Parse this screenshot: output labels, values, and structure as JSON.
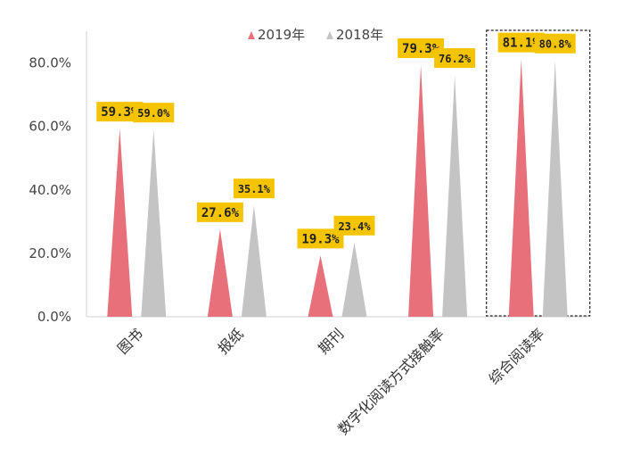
{
  "chart_data": {
    "type": "bar",
    "bar_shape": "triangle",
    "title": "",
    "xlabel": "",
    "ylabel": "",
    "categories": [
      "图书",
      "报纸",
      "期刊",
      "数字化阅读方式接触率",
      "综合阅读率"
    ],
    "series": [
      {
        "name": "2019年",
        "color": "#e8707a",
        "values": [
          59.3,
          27.6,
          19.3,
          79.3,
          81.1
        ],
        "labels": [
          "59.3%",
          "27.6%",
          "19.3%",
          "79.3%",
          "81.1%"
        ]
      },
      {
        "name": "2018年",
        "color": "#c4c4c4",
        "values": [
          59.0,
          35.1,
          23.4,
          76.2,
          80.8
        ],
        "labels": [
          "59.0%",
          "35.1%",
          "23.4%",
          "76.2%",
          "80.8%"
        ]
      }
    ],
    "ylim": [
      0,
      90
    ],
    "yticks": [
      0,
      20,
      40,
      60,
      80
    ],
    "ytick_labels": [
      "0.0%",
      "20.0%",
      "40.0%",
      "60.0%",
      "80.0%"
    ],
    "grid": false,
    "legend_position": "top",
    "data_label_color": "#f5c400",
    "highlighted_category": "综合阅读率"
  }
}
